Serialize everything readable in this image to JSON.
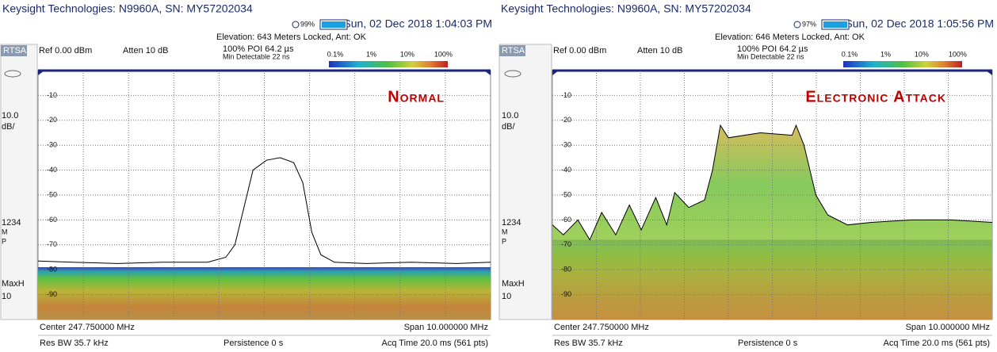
{
  "panels": [
    {
      "title": "Keysight Technologies: N9960A, SN: MY57202034",
      "gps": "99%",
      "datetime": "Sun, 02 Dec 2018 1:04:03 PM",
      "status": "Elevation: 643 Meters  Locked, Ant: OK",
      "mode": "RTSA",
      "ref": "Ref 0.00 dBm",
      "atten": "Atten 10 dB",
      "poi": "100% POI 64.2 µs",
      "min_detect": "Min Detectable 22 ns",
      "colorbar_labels": [
        "0.1%",
        "1%",
        "10%",
        "100%"
      ],
      "scale": [
        "10.0",
        "dB/"
      ],
      "markers": [
        "1234",
        "M",
        "P"
      ],
      "detector": [
        "MaxH",
        "10"
      ],
      "annotation": "Normal",
      "center": "Center 247.750000 MHz",
      "span": "Span 10.000000 MHz",
      "rbw": "Res BW 35.7 kHz",
      "persistence": "Persistence 0  s",
      "acq": "Acq Time 20.0 ms (561 pts)",
      "chart_data": {
        "type": "line",
        "color": "#000000",
        "fill": false,
        "x": [
          242.75,
          243.5,
          244.5,
          245.5,
          246.5,
          246.9,
          247.1,
          247.3,
          247.5,
          247.8,
          248.1,
          248.4,
          248.6,
          248.8,
          249.0,
          249.3,
          250,
          251,
          252,
          252.75
        ],
        "values": [
          -76.5,
          -77,
          -77.5,
          -77,
          -77,
          -75,
          -70,
          -55,
          -40,
          -36,
          -35,
          -37,
          -45,
          -65,
          -74,
          -77,
          -77.5,
          -77,
          -77.5,
          -77
        ],
        "xlim": [
          242.75,
          252.75
        ],
        "ylim": [
          -100,
          0
        ],
        "yticks": [
          -10,
          -20,
          -30,
          -40,
          -50,
          -60,
          -70,
          -80,
          -90
        ],
        "grid": true
      }
    },
    {
      "title": "Keysight Technologies: N9960A, SN: MY57202034",
      "gps": "97%",
      "datetime": "Sun, 02 Dec 2018 1:05:56 PM",
      "status": "Elevation: 646 Meters  Locked, Ant: OK",
      "mode": "RTSA",
      "ref": "Ref 0.00 dBm",
      "atten": "Atten 10 dB",
      "poi": "100% POI 64.2 µs",
      "min_detect": "Min Detectable 22 ns",
      "colorbar_labels": [
        "0.1%",
        "1%",
        "10%",
        "100%"
      ],
      "scale": [
        "10.0",
        "dB/"
      ],
      "markers": [
        "1234",
        "M",
        "P"
      ],
      "detector": [
        "MaxH",
        "10"
      ],
      "annotation": "Electronic Attack",
      "center": "Center 247.750000 MHz",
      "span": "Span 10.000000 MHz",
      "rbw": "Res BW 35.7 kHz",
      "persistence": "Persistence 0  s",
      "acq": "Acq Time 20.0 ms (561 pts)",
      "chart_data": {
        "type": "line",
        "color": "#000000",
        "fill": true,
        "x": [
          242.75,
          243.0,
          243.33,
          243.6,
          243.87,
          244.19,
          244.5,
          244.77,
          245.1,
          245.35,
          245.53,
          245.85,
          246.21,
          246.39,
          246.57,
          246.75,
          247.48,
          248.2,
          248.29,
          248.47,
          248.74,
          249.01,
          249.46,
          250.0,
          250.91,
          251.81,
          252.75
        ],
        "values": [
          -62,
          -66,
          -60,
          -68,
          -57,
          -66,
          -54,
          -64,
          -51,
          -62,
          -49,
          -55,
          -52,
          -40,
          -22,
          -27,
          -25,
          -26,
          -22,
          -30,
          -50,
          -58,
          -62,
          -61,
          -60,
          -60,
          -61
        ],
        "xlim": [
          242.75,
          252.75
        ],
        "ylim": [
          -100,
          0
        ],
        "yticks": [
          -10,
          -20,
          -30,
          -40,
          -50,
          -60,
          -70,
          -80,
          -90
        ],
        "grid": true
      }
    }
  ]
}
